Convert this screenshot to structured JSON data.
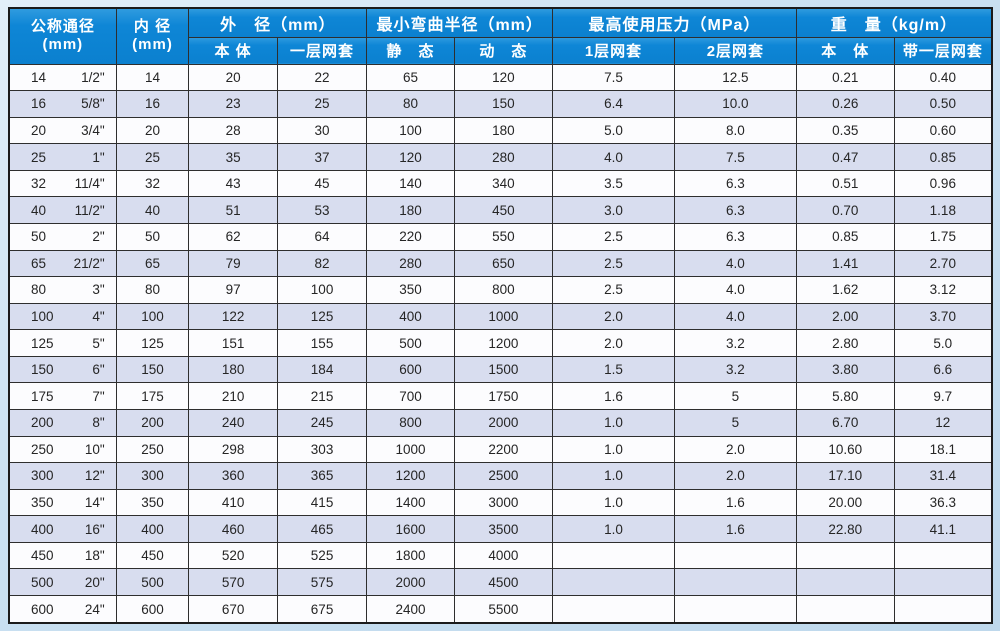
{
  "page": {
    "background_color": "#c7def1",
    "description": "Hose / pipe technical specification table"
  },
  "table": {
    "colors": {
      "header_bg": "#0e86d6",
      "header_text": "#ffffff",
      "row_alt_bg": "#d8ddef",
      "row_bg": "#fcfcfe",
      "grid_line": "#2e2e2e",
      "body_text": "#252525"
    },
    "header": {
      "col_dn": {
        "line1": "公称通径",
        "line2": "(mm)"
      },
      "col_id": {
        "line1": "内 径",
        "line2": "(mm)"
      },
      "grp_od": {
        "label": "外　径（mm）",
        "sub1": "本 体",
        "sub2": "一层网套"
      },
      "grp_bend": {
        "label": "最小弯曲半径（mm）",
        "sub1": "静　态",
        "sub2": "动　态"
      },
      "grp_press": {
        "label": "最高使用压力（MPa）",
        "sub1": "1层网套",
        "sub2": "2层网套"
      },
      "grp_weight": {
        "label": "重　量（kg/m）",
        "sub1": "本　体",
        "sub2": "带一层网套"
      }
    },
    "rows": [
      {
        "dn_mm": "14",
        "dn_in": "1/2\"",
        "id_mm": "14",
        "od_body": "20",
        "od_mesh": "22",
        "bend_st": "65",
        "bend_dy": "120",
        "p1": "7.5",
        "p2": "12.5",
        "w_body": "0.21",
        "w_mesh": "0.40"
      },
      {
        "dn_mm": "16",
        "dn_in": "5/8\"",
        "id_mm": "16",
        "od_body": "23",
        "od_mesh": "25",
        "bend_st": "80",
        "bend_dy": "150",
        "p1": "6.4",
        "p2": "10.0",
        "w_body": "0.26",
        "w_mesh": "0.50"
      },
      {
        "dn_mm": "20",
        "dn_in": "3/4\"",
        "id_mm": "20",
        "od_body": "28",
        "od_mesh": "30",
        "bend_st": "100",
        "bend_dy": "180",
        "p1": "5.0",
        "p2": "8.0",
        "w_body": "0.35",
        "w_mesh": "0.60"
      },
      {
        "dn_mm": "25",
        "dn_in": "1\"",
        "id_mm": "25",
        "od_body": "35",
        "od_mesh": "37",
        "bend_st": "120",
        "bend_dy": "280",
        "p1": "4.0",
        "p2": "7.5",
        "w_body": "0.47",
        "w_mesh": "0.85"
      },
      {
        "dn_mm": "32",
        "dn_in": "11/4\"",
        "id_mm": "32",
        "od_body": "43",
        "od_mesh": "45",
        "bend_st": "140",
        "bend_dy": "340",
        "p1": "3.5",
        "p2": "6.3",
        "w_body": "0.51",
        "w_mesh": "0.96"
      },
      {
        "dn_mm": "40",
        "dn_in": "11/2\"",
        "id_mm": "40",
        "od_body": "51",
        "od_mesh": "53",
        "bend_st": "180",
        "bend_dy": "450",
        "p1": "3.0",
        "p2": "6.3",
        "w_body": "0.70",
        "w_mesh": "1.18"
      },
      {
        "dn_mm": "50",
        "dn_in": "2\"",
        "id_mm": "50",
        "od_body": "62",
        "od_mesh": "64",
        "bend_st": "220",
        "bend_dy": "550",
        "p1": "2.5",
        "p2": "6.3",
        "w_body": "0.85",
        "w_mesh": "1.75"
      },
      {
        "dn_mm": "65",
        "dn_in": "21/2\"",
        "id_mm": "65",
        "od_body": "79",
        "od_mesh": "82",
        "bend_st": "280",
        "bend_dy": "650",
        "p1": "2.5",
        "p2": "4.0",
        "w_body": "1.41",
        "w_mesh": "2.70"
      },
      {
        "dn_mm": "80",
        "dn_in": "3\"",
        "id_mm": "80",
        "od_body": "97",
        "od_mesh": "100",
        "bend_st": "350",
        "bend_dy": "800",
        "p1": "2.5",
        "p2": "4.0",
        "w_body": "1.62",
        "w_mesh": "3.12"
      },
      {
        "dn_mm": "100",
        "dn_in": "4\"",
        "id_mm": "100",
        "od_body": "122",
        "od_mesh": "125",
        "bend_st": "400",
        "bend_dy": "1000",
        "p1": "2.0",
        "p2": "4.0",
        "w_body": "2.00",
        "w_mesh": "3.70"
      },
      {
        "dn_mm": "125",
        "dn_in": "5\"",
        "id_mm": "125",
        "od_body": "151",
        "od_mesh": "155",
        "bend_st": "500",
        "bend_dy": "1200",
        "p1": "2.0",
        "p2": "3.2",
        "w_body": "2.80",
        "w_mesh": "5.0"
      },
      {
        "dn_mm": "150",
        "dn_in": "6\"",
        "id_mm": "150",
        "od_body": "180",
        "od_mesh": "184",
        "bend_st": "600",
        "bend_dy": "1500",
        "p1": "1.5",
        "p2": "3.2",
        "w_body": "3.80",
        "w_mesh": "6.6"
      },
      {
        "dn_mm": "175",
        "dn_in": "7\"",
        "id_mm": "175",
        "od_body": "210",
        "od_mesh": "215",
        "bend_st": "700",
        "bend_dy": "1750",
        "p1": "1.6",
        "p2": "5",
        "w_body": "5.80",
        "w_mesh": "9.7"
      },
      {
        "dn_mm": "200",
        "dn_in": "8\"",
        "id_mm": "200",
        "od_body": "240",
        "od_mesh": "245",
        "bend_st": "800",
        "bend_dy": "2000",
        "p1": "1.0",
        "p2": "5",
        "w_body": "6.70",
        "w_mesh": "12"
      },
      {
        "dn_mm": "250",
        "dn_in": "10\"",
        "id_mm": "250",
        "od_body": "298",
        "od_mesh": "303",
        "bend_st": "1000",
        "bend_dy": "2200",
        "p1": "1.0",
        "p2": "2.0",
        "w_body": "10.60",
        "w_mesh": "18.1"
      },
      {
        "dn_mm": "300",
        "dn_in": "12\"",
        "id_mm": "300",
        "od_body": "360",
        "od_mesh": "365",
        "bend_st": "1200",
        "bend_dy": "2500",
        "p1": "1.0",
        "p2": "2.0",
        "w_body": "17.10",
        "w_mesh": "31.4"
      },
      {
        "dn_mm": "350",
        "dn_in": "14\"",
        "id_mm": "350",
        "od_body": "410",
        "od_mesh": "415",
        "bend_st": "1400",
        "bend_dy": "3000",
        "p1": "1.0",
        "p2": "1.6",
        "w_body": "20.00",
        "w_mesh": "36.3"
      },
      {
        "dn_mm": "400",
        "dn_in": "16\"",
        "id_mm": "400",
        "od_body": "460",
        "od_mesh": "465",
        "bend_st": "1600",
        "bend_dy": "3500",
        "p1": "1.0",
        "p2": "1.6",
        "w_body": "22.80",
        "w_mesh": "41.1"
      },
      {
        "dn_mm": "450",
        "dn_in": "18\"",
        "id_mm": "450",
        "od_body": "520",
        "od_mesh": "525",
        "bend_st": "1800",
        "bend_dy": "4000",
        "p1": "",
        "p2": "",
        "w_body": "",
        "w_mesh": ""
      },
      {
        "dn_mm": "500",
        "dn_in": "20\"",
        "id_mm": "500",
        "od_body": "570",
        "od_mesh": "575",
        "bend_st": "2000",
        "bend_dy": "4500",
        "p1": "",
        "p2": "",
        "w_body": "",
        "w_mesh": ""
      },
      {
        "dn_mm": "600",
        "dn_in": "24\"",
        "id_mm": "600",
        "od_body": "670",
        "od_mesh": "675",
        "bend_st": "2400",
        "bend_dy": "5500",
        "p1": "",
        "p2": "",
        "w_body": "",
        "w_mesh": ""
      }
    ]
  }
}
